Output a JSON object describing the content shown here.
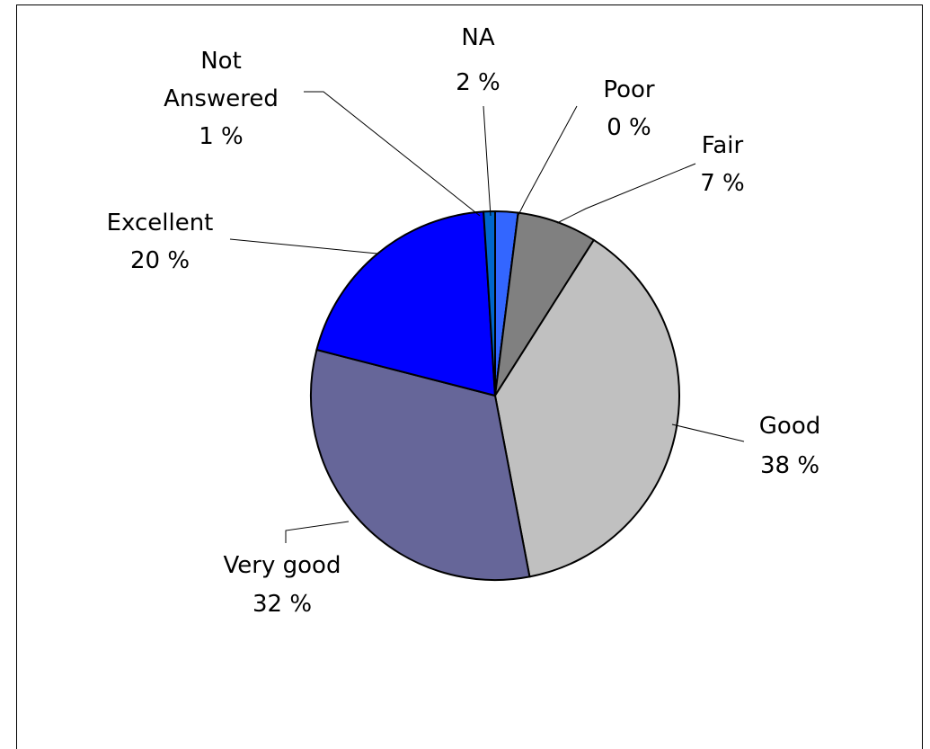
{
  "chart_data": {
    "type": "pie",
    "title": "",
    "slices": [
      {
        "label": "NA",
        "value": 2,
        "percent_label": "2 %",
        "color": "#3366ff"
      },
      {
        "label": "Poor",
        "value": 0,
        "percent_label": "0 %",
        "color": "#000080"
      },
      {
        "label": "Fair",
        "value": 7,
        "percent_label": "7 %",
        "color": "#808080"
      },
      {
        "label": "Good",
        "value": 38,
        "percent_label": "38 %",
        "color": "#c0c0c0"
      },
      {
        "label": "Very good",
        "value": 32,
        "percent_label": "32 %",
        "color": "#666699"
      },
      {
        "label": "Excellent",
        "value": 20,
        "percent_label": "20 %",
        "color": "#0000ff"
      },
      {
        "label": "Not Answered",
        "value": 1,
        "percent_label": "1 %",
        "color": "#0066cc"
      }
    ],
    "legend": "none",
    "data_labels": "outside-with-leader-lines"
  }
}
